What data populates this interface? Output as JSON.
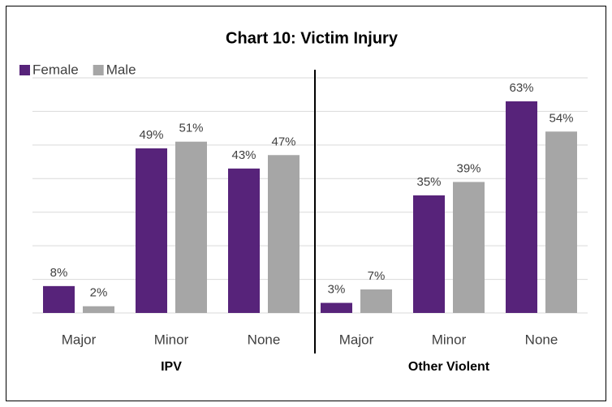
{
  "chart_data": {
    "type": "bar",
    "title": "Chart 10: Victim Injury",
    "categories": [
      "Major",
      "Minor",
      "None",
      "Major",
      "Minor",
      "None"
    ],
    "group_labels": [
      "IPV",
      "Other Violent"
    ],
    "series": [
      {
        "name": "Female",
        "color": "#57237a",
        "values": [
          8,
          49,
          43,
          3,
          35,
          63
        ],
        "value_labels": [
          "8%",
          "49%",
          "43%",
          "3%",
          "35%",
          "63%"
        ]
      },
      {
        "name": "Male",
        "color": "#a6a6a6",
        "values": [
          2,
          51,
          47,
          7,
          39,
          54
        ],
        "value_labels": [
          "2%",
          "51%",
          "47%",
          "7%",
          "39%",
          "54%"
        ]
      }
    ],
    "ylim": [
      0,
      70
    ],
    "yticks": [
      0,
      10,
      20,
      30,
      40,
      50,
      60,
      70
    ],
    "grid": true
  }
}
